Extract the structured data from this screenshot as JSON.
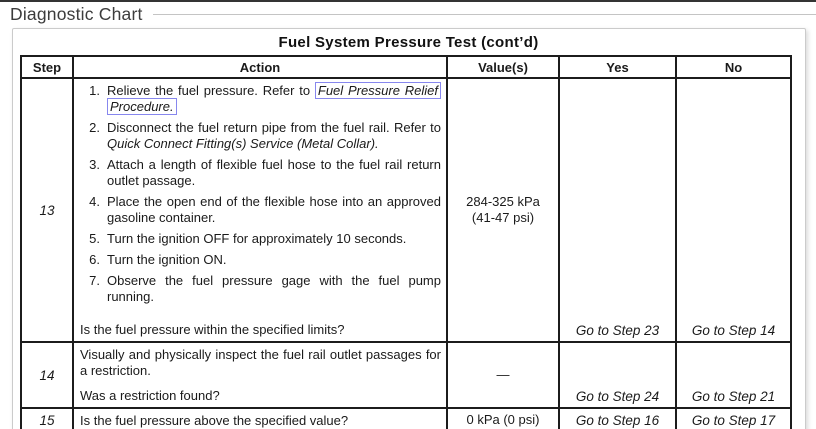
{
  "page": {
    "heading": "Diagnostic Chart"
  },
  "colors": {
    "link_box_outline": "#8787ee",
    "table_border": "#1c1c1c",
    "heading_text": "#3c3c3c"
  },
  "table": {
    "title": "Fuel System Pressure Test (cont’d)",
    "headers": [
      "Step",
      "Action",
      "Value(s)",
      "Yes",
      "No"
    ]
  },
  "rows": [
    {
      "step": "13",
      "items": [
        {
          "num": "1.",
          "parts": [
            {
              "style": "plain",
              "text": "Relieve the fuel pressure. Refer to "
            },
            {
              "style": "link",
              "text": "Fuel Pressure Relief Procedure."
            }
          ]
        },
        {
          "num": "2.",
          "parts": [
            {
              "style": "plain",
              "text": "Disconnect the fuel return pipe from the fuel rail. Refer to "
            },
            {
              "style": "italic",
              "text": "Quick Connect Fitting(s) Service (Metal Collar)."
            }
          ]
        },
        {
          "num": "3.",
          "parts": [
            {
              "style": "plain",
              "text": "Attach a length of flexible fuel hose to the fuel rail return outlet passage."
            }
          ]
        },
        {
          "num": "4.",
          "parts": [
            {
              "style": "plain",
              "text": "Place the open end of the flexible hose into an approved gasoline container."
            }
          ]
        },
        {
          "num": "5.",
          "parts": [
            {
              "style": "plain",
              "text": "Turn the ignition OFF for approximately 10 seconds."
            }
          ]
        },
        {
          "num": "6.",
          "parts": [
            {
              "style": "plain",
              "text": "Turn the ignition ON."
            }
          ]
        },
        {
          "num": "7.",
          "parts": [
            {
              "style": "plain",
              "text": "Observe the fuel pressure gage with the fuel pump running."
            }
          ]
        }
      ],
      "question": "Is the fuel pressure within the specified limits?",
      "value_line1": "284-325 kPa",
      "value_line2": "(41-47 psi)",
      "yes": "Go to Step 23",
      "no": "Go to Step 14"
    },
    {
      "step": "14",
      "action": "Visually and physically inspect the fuel rail outlet passages for a restriction.",
      "question": "Was a restriction found?",
      "value": "—",
      "yes": "Go to Step 24",
      "no": "Go to Step 21"
    },
    {
      "step": "15",
      "action": "Is the fuel pressure above the specified value?",
      "value": "0 kPa (0 psi)",
      "yes": "Go to Step 16",
      "no": "Go to Step 17"
    }
  ]
}
